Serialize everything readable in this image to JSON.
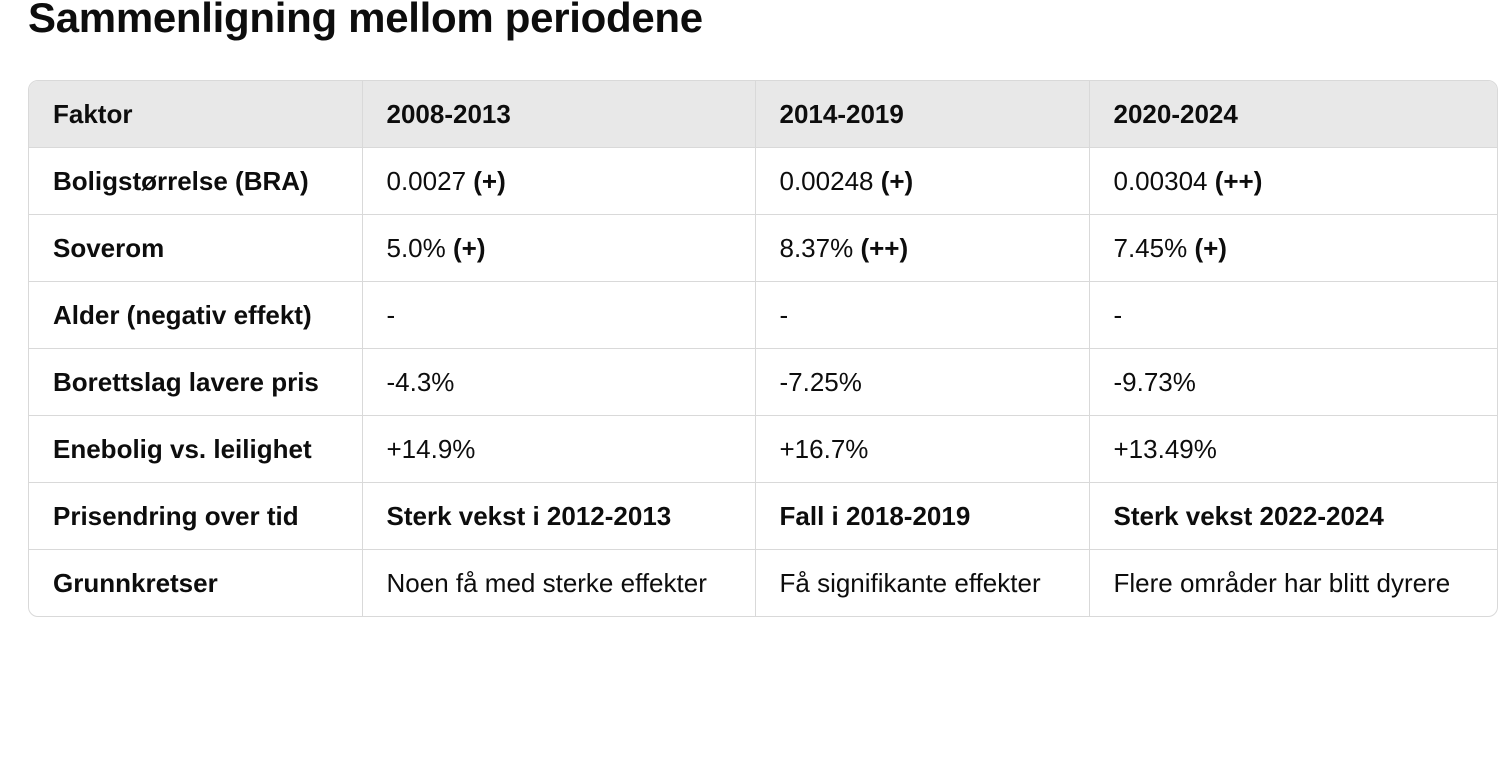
{
  "title": "Sammenligning mellom periodene",
  "table": {
    "headers": [
      "Faktor",
      "2008-2013",
      "2014-2019",
      "2020-2024"
    ],
    "rows": [
      {
        "factor": "Boligstørrelse (BRA)",
        "cells": [
          {
            "value": "0.0027",
            "sign": "(+)"
          },
          {
            "value": "0.00248",
            "sign": "(+)"
          },
          {
            "value": "0.00304",
            "sign": "(++)"
          }
        ]
      },
      {
        "factor": "Soverom",
        "cells": [
          {
            "value": "5.0%",
            "sign": "(+)"
          },
          {
            "value": "8.37%",
            "sign": "(++)"
          },
          {
            "value": "7.45%",
            "sign": "(+)"
          }
        ]
      },
      {
        "factor": "Alder (negativ effekt)",
        "cells": [
          {
            "value": "-"
          },
          {
            "value": "-"
          },
          {
            "value": "-"
          }
        ]
      },
      {
        "factor": "Borettslag lavere pris",
        "cells": [
          {
            "value": "-4.3%"
          },
          {
            "value": "-7.25%"
          },
          {
            "value": "-9.73%"
          }
        ]
      },
      {
        "factor": "Enebolig vs. leilighet",
        "cells": [
          {
            "value": "+14.9%"
          },
          {
            "value": "+16.7%"
          },
          {
            "value": "+13.49%"
          }
        ]
      },
      {
        "factor": "Prisendring over tid",
        "bold": true,
        "cells": [
          {
            "value": "Sterk vekst i 2012-2013"
          },
          {
            "value": "Fall i 2018-2019"
          },
          {
            "value": "Sterk vekst 2022-2024"
          }
        ]
      },
      {
        "factor": "Grunnkretser",
        "cells": [
          {
            "value": "Noen få med sterke effekter"
          },
          {
            "value": "Få signifikante effekter"
          },
          {
            "value": "Flere områder har blitt dyrere"
          }
        ]
      }
    ]
  }
}
